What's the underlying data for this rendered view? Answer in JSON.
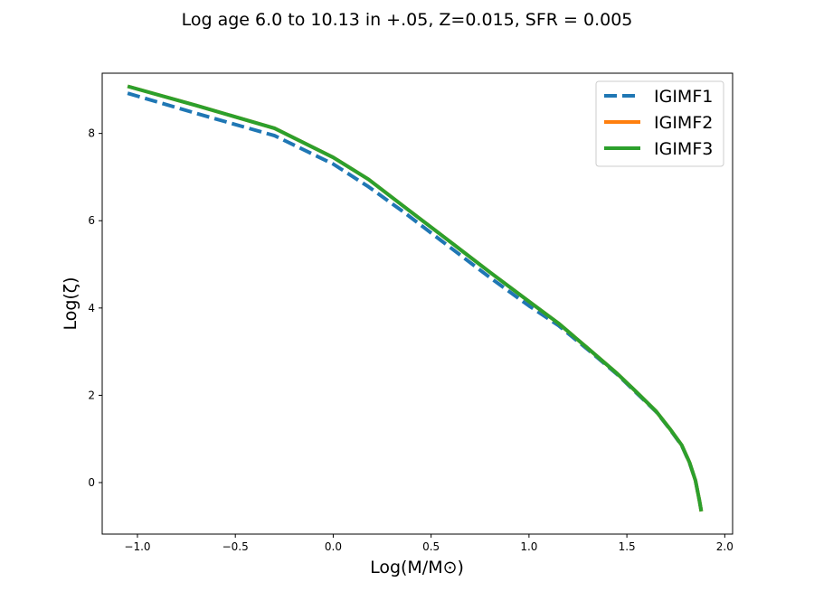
{
  "chart_data": {
    "type": "line",
    "title": "Log age 6.0 to 10.13 in +.05, Z=0.015, SFR = 0.005",
    "xlabel": "Log(M/M⊙)",
    "ylabel": "Log(ζ)",
    "xlim": [
      -1.18,
      2.04
    ],
    "ylim": [
      -1.18,
      9.38
    ],
    "xticks": [
      -1.0,
      -0.5,
      0.0,
      0.5,
      1.0,
      1.5,
      2.0
    ],
    "xtick_labels": [
      "−1.0",
      "−0.5",
      "0.0",
      "0.5",
      "1.0",
      "1.5",
      "2.0"
    ],
    "yticks": [
      0,
      2,
      4,
      6,
      8
    ],
    "ytick_labels": [
      "0",
      "2",
      "4",
      "6",
      "8"
    ],
    "grid": false,
    "legend_position": "top-right",
    "series": [
      {
        "name": "IGIMF1",
        "color": "#1f77b4",
        "style": "dashed",
        "x": [
          -1.05,
          -0.7,
          -0.3,
          0.0,
          0.18,
          0.36,
          0.55,
          0.8,
          1.0,
          1.15,
          1.3,
          1.45,
          1.55,
          1.65,
          1.72,
          1.78,
          1.82,
          1.85,
          1.87,
          1.88
        ],
        "y": [
          8.92,
          8.46,
          7.95,
          7.3,
          6.78,
          6.2,
          5.55,
          4.7,
          4.05,
          3.6,
          3.05,
          2.48,
          2.05,
          1.62,
          1.22,
          0.85,
          0.45,
          0.05,
          -0.4,
          -0.66
        ]
      },
      {
        "name": "IGIMF2",
        "color": "#ff7f0e",
        "style": "solid",
        "x": [
          -1.05,
          -0.7,
          -0.3,
          0.0,
          0.18,
          0.36,
          0.55,
          0.8,
          1.0,
          1.15,
          1.3,
          1.45,
          1.55,
          1.65,
          1.72,
          1.78,
          1.82,
          1.85,
          1.87,
          1.88
        ],
        "y": [
          9.08,
          8.64,
          8.12,
          7.45,
          6.95,
          6.33,
          5.68,
          4.82,
          4.15,
          3.65,
          3.08,
          2.5,
          2.07,
          1.63,
          1.23,
          0.86,
          0.46,
          0.05,
          -0.4,
          -0.66
        ]
      },
      {
        "name": "IGIMF3",
        "color": "#2ca02c",
        "style": "solid",
        "x": [
          -1.05,
          -0.7,
          -0.3,
          0.0,
          0.18,
          0.36,
          0.55,
          0.8,
          1.0,
          1.15,
          1.3,
          1.45,
          1.55,
          1.65,
          1.72,
          1.78,
          1.82,
          1.85,
          1.87,
          1.88
        ],
        "y": [
          9.08,
          8.64,
          8.12,
          7.45,
          6.95,
          6.33,
          5.68,
          4.82,
          4.15,
          3.65,
          3.08,
          2.5,
          2.07,
          1.63,
          1.23,
          0.86,
          0.46,
          0.05,
          -0.4,
          -0.66
        ]
      }
    ]
  }
}
